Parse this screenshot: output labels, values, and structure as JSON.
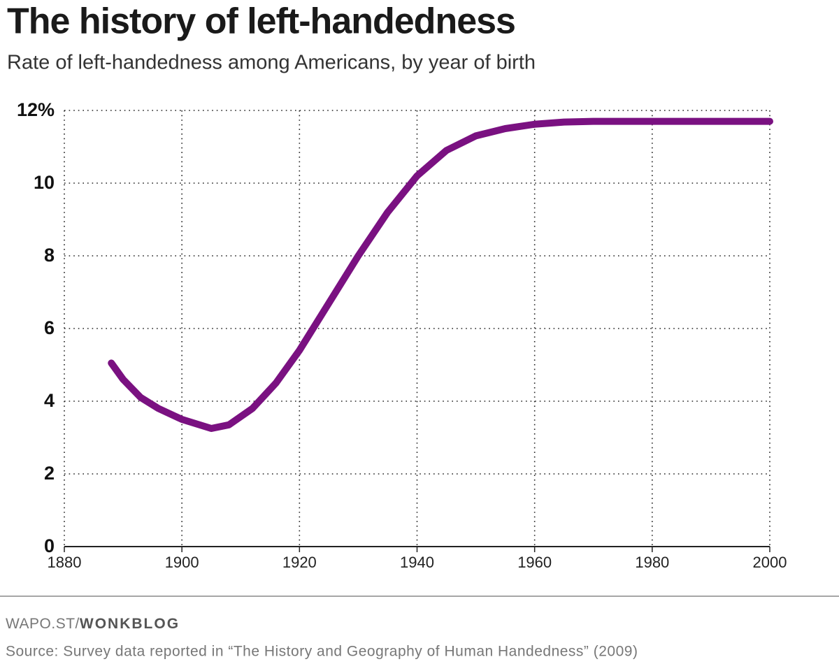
{
  "chart_data": {
    "type": "line",
    "title": "The history of left-handedness",
    "subtitle": "Rate of left-handedness among Americans, by year of birth",
    "x": [
      1888,
      1890,
      1893,
      1896,
      1900,
      1905,
      1908,
      1912,
      1916,
      1920,
      1925,
      1930,
      1935,
      1940,
      1945,
      1950,
      1955,
      1960,
      1965,
      1970,
      1980,
      1990,
      2000
    ],
    "series": [
      {
        "color": "#7a1181",
        "values": [
          5.05,
          4.6,
          4.1,
          3.8,
          3.5,
          3.25,
          3.35,
          3.8,
          4.5,
          5.4,
          6.7,
          8.0,
          9.2,
          10.2,
          10.9,
          11.3,
          11.5,
          11.62,
          11.68,
          11.7,
          11.7,
          11.7,
          11.7
        ]
      }
    ],
    "xlim": [
      1880,
      2000
    ],
    "xticks": [
      1880,
      1900,
      1920,
      1940,
      1960,
      1980,
      2000
    ],
    "ylim": [
      0,
      12
    ],
    "yticks": [
      0,
      2,
      4,
      6,
      8,
      10,
      {
        "value": 12,
        "label": "12%"
      }
    ],
    "grid": true,
    "credit": [
      "WAPO.ST/",
      "WONKBLOG"
    ],
    "source": "Source: Survey data reported in “The History and Geography of Human Handedness” (2009)"
  }
}
